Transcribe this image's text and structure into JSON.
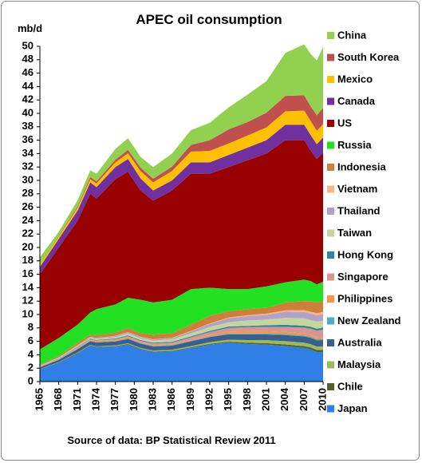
{
  "chart_data": {
    "type": "stacked-area",
    "title": "APEC oil consumption",
    "y_label": "mb/d",
    "source": "Source of data: BP Statistical Review 2011",
    "x": [
      1965,
      1968,
      1971,
      1973,
      1974,
      1977,
      1979,
      1981,
      1983,
      1986,
      1989,
      1992,
      1995,
      1998,
      2001,
      2004,
      2007,
      2008,
      2009,
      2010
    ],
    "xlim": [
      1965,
      2010
    ],
    "xticks": [
      1965,
      1968,
      1971,
      1974,
      1977,
      1980,
      1983,
      1986,
      1989,
      1992,
      1995,
      1998,
      2001,
      2004,
      2007,
      2010
    ],
    "ylim": [
      0,
      50
    ],
    "yticks": [
      0,
      2,
      4,
      6,
      8,
      10,
      12,
      14,
      16,
      18,
      20,
      22,
      24,
      26,
      28,
      30,
      32,
      34,
      36,
      38,
      40,
      42,
      44,
      46,
      48,
      50
    ],
    "grid": false,
    "legend": "right",
    "series": [
      {
        "name": "Japan",
        "color": "#2f7fe6",
        "values": [
          1.8,
          2.8,
          4.2,
          5.3,
          5.1,
          5.2,
          5.5,
          4.8,
          4.4,
          4.5,
          5.0,
          5.5,
          5.8,
          5.6,
          5.5,
          5.3,
          5.0,
          4.8,
          4.4,
          4.4
        ]
      },
      {
        "name": "Chile",
        "color": "#4f6228",
        "values": [
          0.05,
          0.06,
          0.08,
          0.09,
          0.09,
          0.09,
          0.11,
          0.1,
          0.09,
          0.09,
          0.11,
          0.13,
          0.15,
          0.19,
          0.23,
          0.23,
          0.28,
          0.3,
          0.32,
          0.3
        ]
      },
      {
        "name": "Malaysia",
        "color": "#9bbb59",
        "values": [
          0.03,
          0.04,
          0.06,
          0.07,
          0.07,
          0.09,
          0.1,
          0.12,
          0.14,
          0.15,
          0.18,
          0.25,
          0.3,
          0.4,
          0.45,
          0.5,
          0.52,
          0.5,
          0.5,
          0.55
        ]
      },
      {
        "name": "Australia",
        "color": "#3a5f8f",
        "values": [
          0.25,
          0.35,
          0.5,
          0.55,
          0.56,
          0.6,
          0.65,
          0.63,
          0.6,
          0.62,
          0.7,
          0.75,
          0.8,
          0.85,
          0.85,
          0.9,
          0.92,
          0.94,
          0.94,
          0.94
        ]
      },
      {
        "name": "New Zealand",
        "color": "#4bacc6",
        "values": [
          0.04,
          0.05,
          0.07,
          0.08,
          0.08,
          0.08,
          0.09,
          0.09,
          0.09,
          0.09,
          0.1,
          0.1,
          0.11,
          0.12,
          0.13,
          0.15,
          0.16,
          0.16,
          0.15,
          0.15
        ]
      },
      {
        "name": "Philippines",
        "color": "#f79646",
        "values": [
          0.05,
          0.07,
          0.1,
          0.11,
          0.11,
          0.13,
          0.14,
          0.13,
          0.12,
          0.11,
          0.15,
          0.2,
          0.3,
          0.35,
          0.35,
          0.33,
          0.3,
          0.28,
          0.28,
          0.3
        ]
      },
      {
        "name": "Singapore",
        "color": "#d99594",
        "values": [
          0.03,
          0.05,
          0.1,
          0.11,
          0.12,
          0.15,
          0.18,
          0.2,
          0.25,
          0.25,
          0.35,
          0.45,
          0.55,
          0.6,
          0.65,
          0.75,
          0.85,
          0.9,
          1.0,
          1.1
        ]
      },
      {
        "name": "Hong Kong",
        "color": "#31859c",
        "values": [
          0.03,
          0.05,
          0.07,
          0.08,
          0.08,
          0.1,
          0.12,
          0.12,
          0.12,
          0.13,
          0.15,
          0.18,
          0.2,
          0.2,
          0.25,
          0.3,
          0.3,
          0.3,
          0.3,
          0.33
        ]
      },
      {
        "name": "Taiwan",
        "color": "#c3d69b",
        "values": [
          0.03,
          0.05,
          0.1,
          0.12,
          0.13,
          0.2,
          0.28,
          0.28,
          0.3,
          0.35,
          0.45,
          0.6,
          0.65,
          0.8,
          0.85,
          1.05,
          1.1,
          1.0,
          1.05,
          1.0
        ]
      },
      {
        "name": "Thailand",
        "color": "#b3a2c7",
        "values": [
          0.03,
          0.05,
          0.1,
          0.12,
          0.12,
          0.15,
          0.18,
          0.18,
          0.17,
          0.2,
          0.3,
          0.45,
          0.6,
          0.65,
          0.7,
          0.9,
          0.95,
          0.95,
          0.95,
          1.0
        ]
      },
      {
        "name": "Vietnam",
        "color": "#fab38a",
        "values": [
          0.02,
          0.05,
          0.06,
          0.04,
          0.04,
          0.03,
          0.03,
          0.03,
          0.03,
          0.04,
          0.05,
          0.07,
          0.1,
          0.13,
          0.18,
          0.22,
          0.27,
          0.29,
          0.3,
          0.32
        ]
      },
      {
        "name": "Indonesia",
        "color": "#d07f3a",
        "values": [
          0.14,
          0.18,
          0.36,
          0.33,
          0.4,
          0.48,
          0.62,
          0.52,
          0.69,
          0.67,
          0.96,
          1.12,
          0.94,
          0.91,
          0.86,
          1.17,
          1.35,
          1.58,
          1.61,
          1.61
        ]
      },
      {
        "name": "Russia",
        "color": "#22e022",
        "values": [
          2.3,
          2.7,
          2.7,
          3.3,
          3.9,
          4.2,
          4.5,
          5.0,
          4.8,
          5.0,
          5.3,
          4.2,
          3.3,
          3.0,
          3.2,
          3.0,
          3.2,
          3.0,
          2.7,
          2.9
        ]
      },
      {
        "name": "US",
        "color": "#990000",
        "values": [
          11.2,
          13.5,
          15.5,
          17.7,
          16.5,
          18.7,
          18.8,
          16.3,
          15.2,
          16.3,
          17.2,
          17.0,
          18.2,
          19.2,
          19.8,
          21.2,
          20.8,
          19.5,
          18.7,
          19.2
        ]
      },
      {
        "name": "Canada",
        "color": "#7030a0",
        "values": [
          1.1,
          1.3,
          1.5,
          1.7,
          1.7,
          1.8,
          1.9,
          1.8,
          1.5,
          1.5,
          1.7,
          1.7,
          1.8,
          1.9,
          2.0,
          2.3,
          2.3,
          2.3,
          2.2,
          2.3
        ]
      },
      {
        "name": "Mexico",
        "color": "#ffc000",
        "values": [
          0.3,
          0.35,
          0.45,
          0.5,
          0.55,
          0.7,
          0.85,
          1.1,
          1.2,
          1.4,
          1.6,
          1.7,
          1.7,
          1.8,
          1.9,
          2.0,
          2.1,
          2.1,
          2.0,
          2.0
        ]
      },
      {
        "name": "South Korea",
        "color": "#c0504d",
        "values": [
          0.02,
          0.1,
          0.2,
          0.3,
          0.3,
          0.4,
          0.5,
          0.5,
          0.55,
          0.65,
          1.0,
          1.6,
          2.1,
          2.0,
          2.2,
          2.3,
          2.3,
          2.2,
          2.3,
          2.4
        ]
      },
      {
        "name": "China",
        "color": "#92d050",
        "values": [
          1.1,
          0.6,
          0.9,
          1.0,
          1.15,
          1.6,
          1.75,
          1.6,
          1.75,
          1.95,
          2.2,
          2.6,
          3.3,
          4.1,
          4.7,
          6.4,
          7.6,
          7.8,
          8.2,
          9.1
        ]
      }
    ]
  }
}
